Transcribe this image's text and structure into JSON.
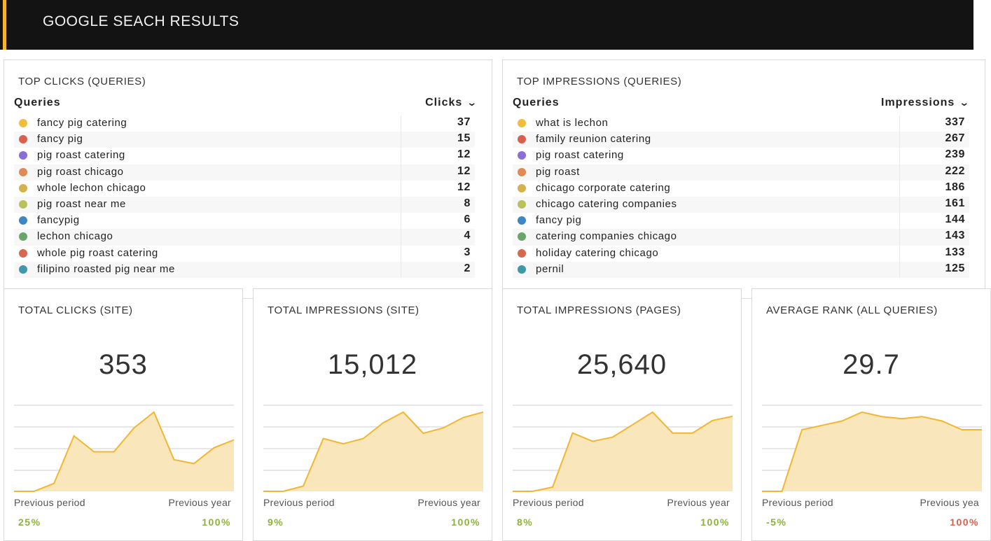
{
  "header": {
    "title": "GOOGLE SEACH RESULTS",
    "accent_color": "#f2b632"
  },
  "top_clicks": {
    "title": "TOP CLICKS (QUERIES)",
    "col_query": "Queries",
    "col_metric": "Clicks",
    "sort_icon": "chevron-down-icon",
    "rows": [
      {
        "label": "fancy pig catering",
        "value": "37",
        "color": "#f0be3c"
      },
      {
        "label": "fancy pig",
        "value": "15",
        "color": "#d9604f"
      },
      {
        "label": "pig roast catering",
        "value": "12",
        "color": "#8a6fd6"
      },
      {
        "label": "pig roast chicago",
        "value": "12",
        "color": "#e08a55"
      },
      {
        "label": "whole lechon chicago",
        "value": "12",
        "color": "#d6b24e"
      },
      {
        "label": "pig roast near me",
        "value": "8",
        "color": "#b9c25a"
      },
      {
        "label": "fancypig",
        "value": "6",
        "color": "#3f86c4"
      },
      {
        "label": "lechon chicago",
        "value": "4",
        "color": "#6aa56a"
      },
      {
        "label": "whole pig roast catering",
        "value": "3",
        "color": "#d66a4e"
      },
      {
        "label": "filipino roasted pig near me",
        "value": "2",
        "color": "#3f98a8"
      }
    ]
  },
  "top_impressions": {
    "title": "TOP IMPRESSIONS (QUERIES)",
    "col_query": "Queries",
    "col_metric": "Impressions",
    "sort_icon": "chevron-down-icon",
    "rows": [
      {
        "label": "what is lechon",
        "value": "337",
        "color": "#f0be3c"
      },
      {
        "label": "family reunion catering",
        "value": "267",
        "color": "#d9604f"
      },
      {
        "label": "pig roast catering",
        "value": "239",
        "color": "#8a6fd6"
      },
      {
        "label": "pig roast",
        "value": "222",
        "color": "#e08a55"
      },
      {
        "label": "chicago corporate catering",
        "value": "186",
        "color": "#d6b24e"
      },
      {
        "label": "chicago catering companies",
        "value": "161",
        "color": "#b9c25a"
      },
      {
        "label": "fancy pig",
        "value": "144",
        "color": "#3f86c4"
      },
      {
        "label": "catering companies chicago",
        "value": "143",
        "color": "#6aa56a"
      },
      {
        "label": "holiday catering chicago",
        "value": "133",
        "color": "#d66a4e"
      },
      {
        "label": "pernil",
        "value": "125",
        "color": "#3f98a8"
      }
    ]
  },
  "metrics": [
    {
      "title": "TOTAL CLICKS (SITE)",
      "value": "353",
      "prev_period_label": "Previous period",
      "prev_year_label": "Previous year",
      "prev_period": "25%",
      "prev_year": "100%",
      "prev_period_color": "#8db33a",
      "prev_year_color": "#8db33a",
      "series": [
        0,
        0,
        2,
        14,
        10,
        10,
        16,
        20,
        8,
        7,
        11,
        13
      ]
    },
    {
      "title": "TOTAL IMPRESSIONS (SITE)",
      "value": "15,012",
      "prev_period_label": "Previous period",
      "prev_year_label": "Previous year",
      "prev_period": "9%",
      "prev_year": "100%",
      "prev_period_color": "#8db33a",
      "prev_year_color": "#8db33a",
      "series": [
        0,
        0,
        1,
        10,
        9,
        10,
        13,
        15,
        11,
        12,
        14,
        15
      ]
    },
    {
      "title": "TOTAL IMPRESSIONS (PAGES)",
      "value": "25,640",
      "prev_period_label": "Previous period",
      "prev_year_label": "Previous year",
      "prev_period": "8%",
      "prev_year": "100%",
      "prev_period_color": "#8db33a",
      "prev_year_color": "#8db33a",
      "series": [
        0,
        0,
        1,
        14,
        12,
        13,
        16,
        19,
        14,
        14,
        17,
        18
      ]
    },
    {
      "title": "AVERAGE RANK (ALL QUERIES)",
      "value": "29.7",
      "prev_period_label": "Previous period",
      "prev_year_label": "Previous yea",
      "prev_period": "-5%",
      "prev_year": "100%",
      "prev_period_color": "#8db33a",
      "prev_year_color": "#d9604f",
      "series": [
        0,
        0,
        14,
        15,
        16,
        18,
        17,
        16.5,
        17,
        16,
        14,
        14
      ]
    }
  ],
  "chart_data": [
    {
      "type": "area",
      "title": "TOTAL CLICKS (SITE)",
      "x": [
        1,
        2,
        3,
        4,
        5,
        6,
        7,
        8,
        9,
        10,
        11,
        12
      ],
      "series": [
        {
          "values": [
            0,
            0,
            2,
            14,
            10,
            10,
            16,
            20,
            8,
            7,
            11,
            13
          ]
        }
      ],
      "grid": true
    },
    {
      "type": "area",
      "title": "TOTAL IMPRESSIONS (SITE)",
      "x": [
        1,
        2,
        3,
        4,
        5,
        6,
        7,
        8,
        9,
        10,
        11,
        12
      ],
      "series": [
        {
          "values": [
            0,
            0,
            1,
            10,
            9,
            10,
            13,
            15,
            11,
            12,
            14,
            15
          ]
        }
      ],
      "grid": true
    },
    {
      "type": "area",
      "title": "TOTAL IMPRESSIONS (PAGES)",
      "x": [
        1,
        2,
        3,
        4,
        5,
        6,
        7,
        8,
        9,
        10,
        11,
        12
      ],
      "series": [
        {
          "values": [
            0,
            0,
            1,
            14,
            12,
            13,
            16,
            19,
            14,
            14,
            17,
            18
          ]
        }
      ],
      "grid": true
    },
    {
      "type": "area",
      "title": "AVERAGE RANK (ALL QUERIES)",
      "x": [
        1,
        2,
        3,
        4,
        5,
        6,
        7,
        8,
        9,
        10,
        11,
        12
      ],
      "series": [
        {
          "values": [
            0,
            0,
            14,
            15,
            16,
            18,
            17,
            16.5,
            17,
            16,
            14,
            14
          ]
        }
      ],
      "grid": true
    }
  ]
}
